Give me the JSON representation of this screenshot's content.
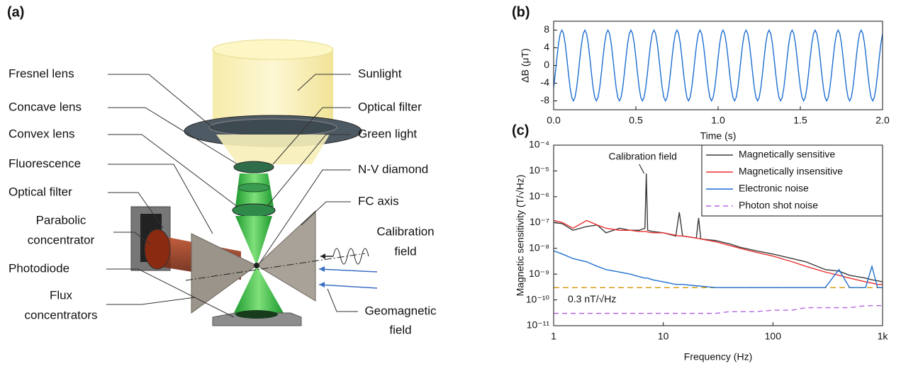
{
  "diagram": {
    "panel_label": "(a)",
    "left": [
      [
        "Fresnel lens"
      ],
      [
        "Concave lens"
      ],
      [
        "Convex lens"
      ],
      [
        "Fluorescence"
      ],
      [
        "Optical filter"
      ],
      [
        "Parabolic",
        "concentrator"
      ],
      [
        "Photodiode"
      ],
      [
        "Flux",
        "concentrators"
      ]
    ],
    "right": [
      [
        "Sunlight"
      ],
      [
        "Optical filter"
      ],
      [
        "Green light"
      ],
      [
        "N-V diamond"
      ],
      [
        "FC axis"
      ],
      [
        "Calibration",
        "field"
      ],
      [
        "Geomagnetic",
        "field"
      ]
    ]
  },
  "chart_data": [
    {
      "type": "line",
      "panel_label": "(b)",
      "x_label": "Time (s)",
      "y_label": "ΔB (μT)",
      "color": "#1f6fd1",
      "xlim": [
        0,
        2
      ],
      "ylim": [
        -10,
        10
      ],
      "xticks": [
        {
          "value": 0,
          "label": "0.0"
        },
        0.5,
        {
          "value": 1,
          "label": "1.0"
        },
        1.5,
        {
          "value": 2,
          "label": "2.0"
        }
      ],
      "yticks": [
        -8,
        -4,
        0,
        4,
        8
      ],
      "x": [
        0,
        0.01,
        0.02,
        0.03,
        0.04,
        0.05,
        0.06,
        0.07,
        0.08,
        0.09,
        0.1,
        0.11,
        0.12,
        0.13,
        0.14,
        0.15,
        0.16,
        0.17,
        0.18,
        0.19,
        0.2,
        0.21,
        0.22,
        0.23,
        0.24,
        0.25,
        0.26,
        0.27,
        0.28,
        0.29,
        0.3,
        0.31,
        0.32,
        0.33,
        0.34,
        0.35,
        0.36,
        0.37,
        0.38,
        0.39,
        0.4,
        0.41,
        0.42,
        0.43,
        0.44,
        0.45,
        0.46,
        0.47,
        0.48,
        0.49,
        0.5,
        0.51,
        0.52,
        0.53,
        0.54,
        0.55,
        0.56,
        0.57,
        0.58,
        0.59,
        0.6,
        0.61,
        0.62,
        0.63,
        0.64,
        0.65,
        0.66,
        0.67,
        0.68,
        0.69,
        0.7,
        0.71,
        0.72,
        0.73,
        0.74,
        0.75,
        0.76,
        0.77,
        0.78,
        0.79,
        0.8,
        0.81,
        0.82,
        0.83,
        0.84,
        0.85,
        0.86,
        0.87,
        0.88,
        0.89,
        0.9,
        0.91,
        0.92,
        0.93,
        0.94,
        0.95,
        0.96,
        0.97,
        0.98,
        0.99,
        1,
        1.01,
        1.02,
        1.03,
        1.04,
        1.05,
        1.06,
        1.07,
        1.08,
        1.09,
        1.1,
        1.11,
        1.12,
        1.13,
        1.14,
        1.15,
        1.16,
        1.17,
        1.18,
        1.19,
        1.2,
        1.21,
        1.22,
        1.23,
        1.24,
        1.25,
        1.26,
        1.27,
        1.28,
        1.29,
        1.3,
        1.31,
        1.32,
        1.33,
        1.34,
        1.35,
        1.36,
        1.37,
        1.38,
        1.39,
        1.4,
        1.41,
        1.42,
        1.43,
        1.44,
        1.45,
        1.46,
        1.47,
        1.48,
        1.49,
        1.5,
        1.51,
        1.52,
        1.53,
        1.54,
        1.55,
        1.56,
        1.57,
        1.58,
        1.59,
        1.6,
        1.61,
        1.62,
        1.63,
        1.64,
        1.65,
        1.66,
        1.67,
        1.68,
        1.69,
        1.7,
        1.71,
        1.72,
        1.73,
        1.74,
        1.75,
        1.76,
        1.77,
        1.78,
        1.79,
        1.8,
        1.81,
        1.82,
        1.83,
        1.84,
        1.85,
        1.86,
        1.87,
        1.88,
        1.89,
        1.9,
        1.91,
        1.92,
        1.93,
        1.94,
        1.95,
        1.96,
        1.97,
        1.98,
        1.99,
        2
      ],
      "values": [
        -5,
        -1.8,
        1.8,
        5,
        7.2,
        8,
        7.2,
        5,
        1.8,
        -1.8,
        -5,
        -7.2,
        -8,
        -7.2,
        -5,
        -1.8,
        1.8,
        5,
        7.2,
        8,
        7.2,
        5,
        1.8,
        -1.8,
        -5,
        -7.2,
        -8,
        -7.2,
        -5,
        -1.8,
        1.8,
        5,
        7.2,
        8,
        7.2,
        5,
        1.8,
        -1.8,
        -5,
        -7.2,
        -8,
        -7.2,
        -5,
        -1.8,
        1.8,
        5,
        7.2,
        8,
        7.2,
        5,
        1.8,
        -1.8,
        -5,
        -7.2,
        -8,
        -7.2,
        -5,
        -1.8,
        1.8,
        5,
        7.2,
        8,
        7.2,
        5,
        1.8,
        -1.8,
        -5,
        -7.2,
        -8,
        -7.2,
        -5,
        -1.8,
        1.8,
        5,
        7.2,
        8,
        7.2,
        5,
        1.8,
        -1.8,
        -5,
        -7.2,
        -8,
        -7.2,
        -5,
        -1.8,
        1.8,
        5,
        7.2,
        8,
        7.2,
        5,
        1.8,
        -1.8,
        -5,
        -7.2,
        -8,
        -7.2,
        -5,
        -1.8,
        1.8,
        5,
        7.2,
        8,
        7.2,
        5,
        1.8,
        -1.8,
        -5,
        -7.2,
        -8,
        -7.2,
        -5,
        -1.8,
        1.8,
        5,
        7.2,
        8,
        7.2,
        5,
        1.8,
        -1.8,
        -5,
        -7.2,
        -8,
        -7.2,
        -5,
        -1.8,
        1.8,
        5,
        7.2,
        8,
        7.2,
        5,
        1.8,
        -1.8,
        -5,
        -7.2,
        -8,
        -7.2,
        -5,
        -1.8,
        1.8,
        5,
        7.2,
        8,
        7.2,
        5,
        1.8,
        -1.8,
        -5,
        -7.2,
        -8,
        -7.2,
        -5,
        -1.8,
        1.8,
        5,
        7.2,
        8,
        7.2,
        5,
        1.8,
        -1.8,
        -5,
        -7.2,
        -8,
        -7.2,
        -5,
        -1.8,
        1.8,
        5,
        7.2,
        8,
        7.2,
        5,
        1.8,
        -1.8,
        -5,
        -7.2,
        -8,
        -7.2,
        -5,
        -1.8,
        1.8,
        5,
        7.2,
        8,
        7.2,
        5,
        1.8,
        -1.8,
        -5,
        -7.2,
        -8,
        -7.2,
        -5,
        -1.8,
        1.8,
        5,
        7.2
      ]
    },
    {
      "type": "line",
      "panel_label": "(c)",
      "x_label": "Frequency (Hz)",
      "y_label": "Magnetic sensitivity (T/√Hz)",
      "xscale": "log",
      "yscale": "log",
      "xlim": [
        1,
        1000
      ],
      "ylim": [
        1e-11,
        0.0001
      ],
      "xticks": [
        1,
        10,
        100,
        {
          "value": 1000,
          "label": "1k"
        }
      ],
      "yticks": [
        {
          "value": 1e-11,
          "label": "10⁻¹¹"
        },
        {
          "value": 1e-10,
          "label": "10⁻¹⁰"
        },
        {
          "value": 1e-09,
          "label": "10⁻⁹"
        },
        {
          "value": 1e-08,
          "label": "10⁻⁸"
        },
        {
          "value": 1e-07,
          "label": "10⁻⁷"
        },
        {
          "value": 1e-06,
          "label": "10⁻⁶"
        },
        {
          "value": 1e-05,
          "label": "10⁻⁵"
        },
        {
          "value": 0.0001,
          "label": "10⁻⁴"
        }
      ],
      "legend": "upper right",
      "annotations": [
        {
          "text": "Calibration field"
        }
      ],
      "reference_line": {
        "value": 3e-10,
        "label": "0.3 nT/√Hz",
        "color": "#d4a017"
      },
      "x": [
        1,
        1.2,
        1.5,
        2,
        2.5,
        3,
        4,
        5,
        6,
        6.8,
        7,
        7.2,
        8,
        10,
        13,
        14,
        15,
        20,
        21,
        22,
        30,
        40,
        50,
        70,
        100,
        150,
        200,
        300,
        400,
        500,
        700,
        800,
        900,
        1000
      ],
      "series": [
        {
          "name": "Magnetically sensitive",
          "color": "#3a3a3a",
          "values": [
            1e-07,
            9e-08,
            5e-08,
            7e-08,
            8e-08,
            4e-08,
            6e-08,
            5e-08,
            5e-08,
            6e-08,
            8e-06,
            5e-08,
            4.5e-08,
            4e-08,
            3e-08,
            2.5e-07,
            3e-08,
            2.5e-08,
            1.5e-07,
            2.3e-08,
            2e-08,
            1.5e-08,
            1.1e-08,
            8e-09,
            6e-09,
            4e-09,
            3e-09,
            1.5e-09,
            1.3e-09,
            9e-10,
            7e-10,
            6e-10,
            5.5e-10,
            5e-10
          ]
        },
        {
          "name": "Magnetically insensitive",
          "color": "#e8312f",
          "values": [
            1.2e-07,
            1e-07,
            6e-08,
            1.2e-07,
            8e-08,
            6e-08,
            5e-08,
            5e-08,
            4.5e-08,
            4.5e-08,
            4.5e-08,
            4.3e-08,
            4e-08,
            4e-08,
            3.2e-08,
            3e-08,
            3e-08,
            2.5e-08,
            2.4e-08,
            2.3e-08,
            1.8e-08,
            1.3e-08,
            1e-08,
            7e-09,
            5e-09,
            3e-09,
            2e-09,
            1.2e-09,
            9e-10,
            7e-10,
            5e-10,
            4.5e-10,
            4e-10,
            4e-10
          ]
        },
        {
          "name": "Electronic noise",
          "color": "#1f6fd1",
          "values": [
            8e-09,
            6e-09,
            4e-09,
            3e-09,
            2e-09,
            1.5e-09,
            1.2e-09,
            1e-09,
            8e-10,
            7e-10,
            7e-10,
            7e-10,
            6e-10,
            5e-10,
            4e-10,
            4e-10,
            4e-10,
            3.5e-10,
            3.5e-10,
            3.4e-10,
            3e-10,
            3e-10,
            3e-10,
            3e-10,
            3e-10,
            3e-10,
            3e-10,
            3e-10,
            1.5e-09,
            3e-10,
            3e-10,
            2e-09,
            3e-10,
            3e-10
          ]
        },
        {
          "name": "Photon shot noise",
          "color": "#b366e0",
          "line_style": "dashed",
          "values": [
            3e-11,
            3e-11,
            3e-11,
            3e-11,
            3e-11,
            3e-11,
            3e-11,
            3e-11,
            3e-11,
            3e-11,
            3e-11,
            3e-11,
            3e-11,
            3e-11,
            3e-11,
            3e-11,
            3e-11,
            3e-11,
            3e-11,
            3e-11,
            3e-11,
            3.5e-11,
            3.5e-11,
            3.5e-11,
            4e-11,
            4e-11,
            5e-11,
            5e-11,
            5e-11,
            5e-11,
            6e-11,
            6e-11,
            6e-11,
            6e-11
          ]
        }
      ]
    }
  ]
}
